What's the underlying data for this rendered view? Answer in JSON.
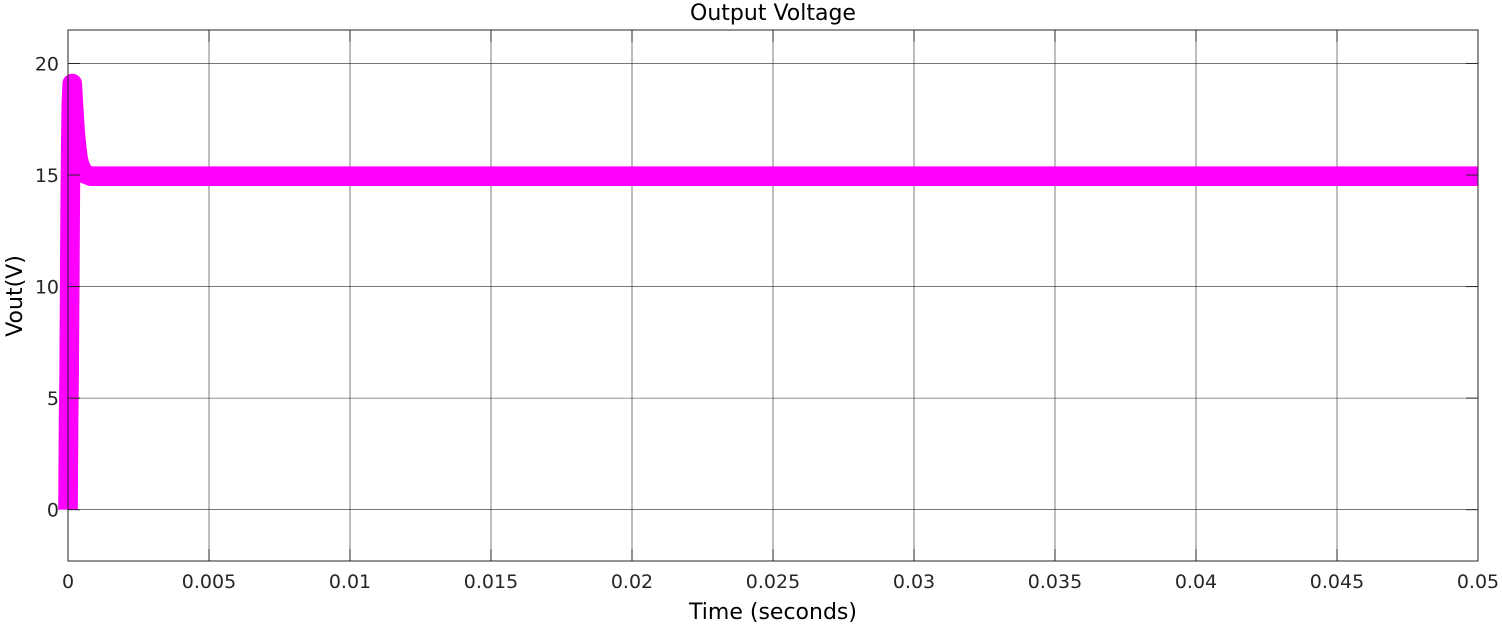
{
  "chart_data": {
    "type": "line",
    "title": "Output Voltage",
    "xlabel": "Time (seconds)",
    "ylabel": "Vout(V)",
    "xlim": [
      0,
      0.05
    ],
    "ylim": [
      -2.3,
      21.5
    ],
    "x_ticks": [
      0,
      0.005,
      0.01,
      0.015,
      0.02,
      0.025,
      0.03,
      0.035,
      0.04,
      0.045,
      0.05
    ],
    "x_tick_labels": [
      "0",
      "0.005",
      "0.01",
      "0.015",
      "0.02",
      "0.025",
      "0.03",
      "0.035",
      "0.04",
      "0.045",
      "0.05"
    ],
    "y_ticks": [
      0,
      5,
      10,
      15,
      20
    ],
    "y_tick_labels": [
      "0",
      "5",
      "10",
      "15",
      "20"
    ],
    "grid": true,
    "legend": "none",
    "series": [
      {
        "color": "#ff00ff",
        "ripple_pp": 0.4,
        "x": [
          0,
          2e-05,
          4e-05,
          6e-05,
          8e-05,
          0.0001,
          0.00012,
          0.00015,
          0.0002,
          0.00025,
          0.0003,
          0.00035,
          0.0004,
          0.0005,
          0.0006,
          0.0007,
          0.0008,
          0.001,
          0.002,
          0.01,
          0.02,
          0.03,
          0.04,
          0.05
        ],
        "y": [
          0,
          4.0,
          6.0,
          10.0,
          14.0,
          16.5,
          18.2,
          19.1,
          18.0,
          17.0,
          16.3,
          15.8,
          15.5,
          15.2,
          15.05,
          15.0,
          14.95,
          14.95,
          14.95,
          14.95,
          14.95,
          14.95,
          14.95,
          14.95
        ]
      }
    ]
  }
}
